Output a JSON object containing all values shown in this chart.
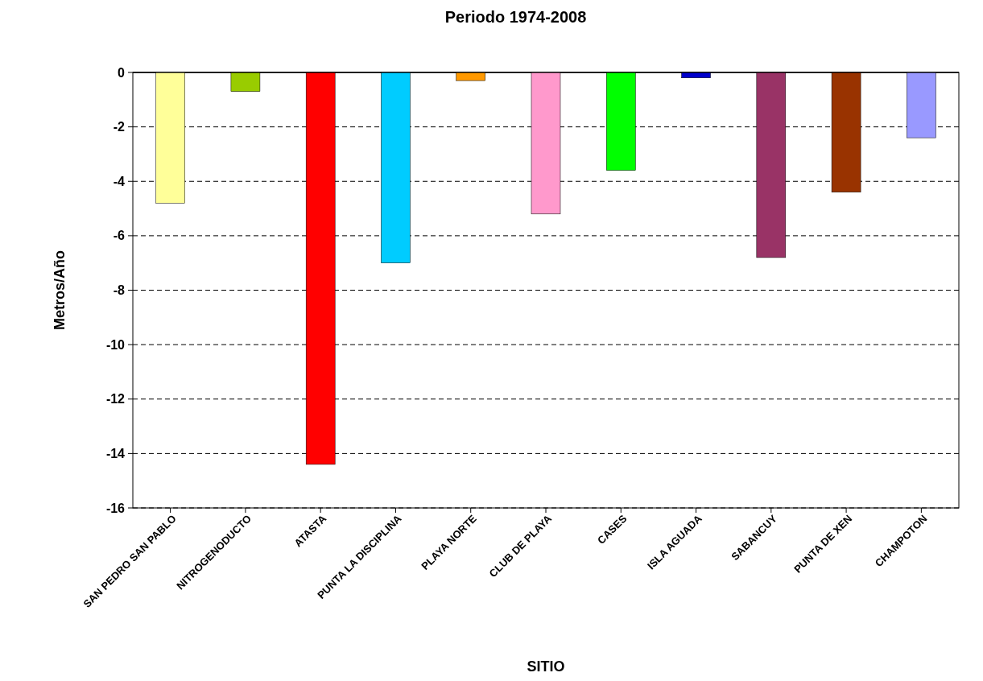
{
  "chart_data": {
    "type": "bar",
    "title": "Periodo 1974-2008",
    "xlabel": "SITIO",
    "ylabel": "Metros/Año",
    "categories": [
      "SAN PEDRO SAN PABLO",
      "NITROGENODUCTO",
      "ATASTA",
      "PUNTA LA DISCIPLINA",
      "PLAYA NORTE",
      "CLUB DE PLAYA",
      "CASES",
      "ISLA AGUADA",
      "SABANCUY",
      "PUNTA DE XEN",
      "CHAMPOTON"
    ],
    "values": [
      -4.8,
      -0.7,
      -14.4,
      -7.0,
      -0.3,
      -5.2,
      -3.6,
      -0.2,
      -6.8,
      -4.4,
      -2.4
    ],
    "colors": [
      "#ffff99",
      "#99cc00",
      "#ff0000",
      "#00ccff",
      "#ff9900",
      "#ff99cc",
      "#00ff00",
      "#0000cc",
      "#993366",
      "#993300",
      "#9999ff"
    ],
    "ylim": [
      -16,
      0
    ],
    "yticks": [
      0,
      -2,
      -4,
      -6,
      -8,
      -10,
      -12,
      -14,
      -16
    ],
    "grid": "y"
  }
}
